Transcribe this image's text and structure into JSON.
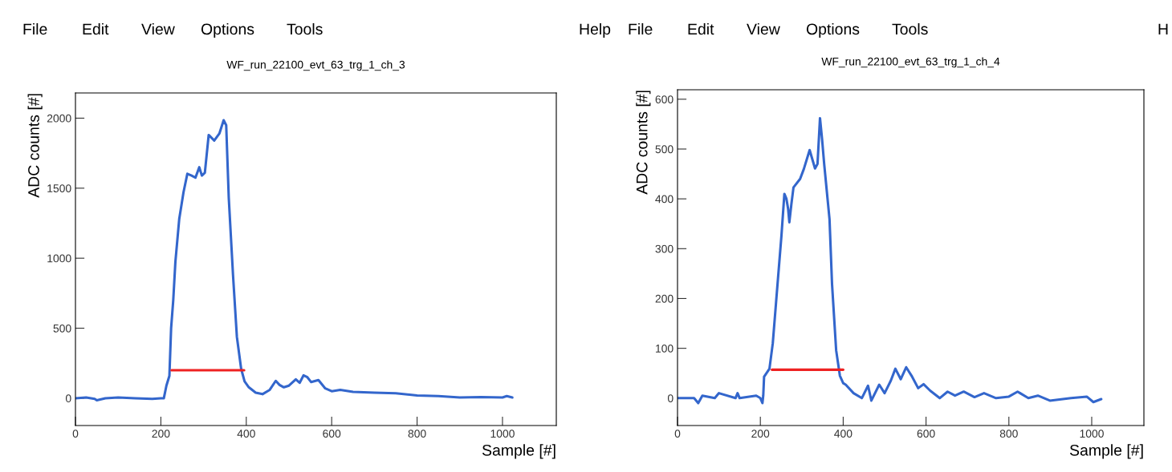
{
  "chart_data": [
    {
      "type": "line",
      "title": "WF_run_22100_evt_63_trg_1_ch_3",
      "xlabel": "Sample [#]",
      "ylabel": "ADC counts [#]",
      "annotations": [
        "File",
        "Edit",
        "View",
        "Options",
        "Tools",
        "Help"
      ],
      "xlim": [
        0,
        1126
      ],
      "xticks": [
        0,
        200,
        400,
        600,
        800,
        1000
      ],
      "ylim": [
        -195,
        2180
      ],
      "yticks": [
        0,
        500,
        1000,
        1500,
        2000
      ],
      "grid": false,
      "legend": false,
      "series": [
        {
          "color": "#3366cc",
          "x": [
            0,
            25,
            45,
            50,
            70,
            100,
            140,
            180,
            200,
            207,
            213,
            220,
            224,
            229,
            234,
            243,
            253,
            262,
            272,
            281,
            290,
            296,
            303,
            312,
            325,
            337,
            347,
            353,
            359,
            369,
            378,
            388,
            396,
            406,
            422,
            438,
            455,
            469,
            478,
            488,
            500,
            516,
            525,
            534,
            543,
            552,
            569,
            585,
            600,
            620,
            650,
            700,
            750,
            800,
            850,
            900,
            950,
            1000,
            1010,
            1023
          ],
          "values": [
            0,
            5,
            -5,
            -15,
            0,
            5,
            0,
            -5,
            0,
            0,
            90,
            160,
            500,
            700,
            973,
            1280,
            1470,
            1603,
            1590,
            1575,
            1650,
            1590,
            1610,
            1880,
            1840,
            1890,
            1985,
            1950,
            1431,
            878,
            439,
            210,
            120,
            78,
            40,
            29,
            60,
            124,
            95,
            78,
            90,
            135,
            110,
            163,
            150,
            115,
            130,
            70,
            50,
            60,
            45,
            40,
            35,
            20,
            15,
            5,
            8,
            5,
            15,
            5
          ]
        },
        {
          "color": "#ee2222",
          "x": [
            225,
            395
          ],
          "values": [
            200,
            200
          ]
        }
      ]
    },
    {
      "type": "line",
      "title": "WF_run_22100_evt_63_trg_1_ch_4",
      "xlabel": "Sample [#]",
      "ylabel": "ADC counts [#]",
      "annotations": [
        "File",
        "Edit",
        "View",
        "Options",
        "Tools",
        "H"
      ],
      "xlim": [
        0,
        1126
      ],
      "xticks": [
        0,
        200,
        400,
        600,
        800,
        1000
      ],
      "ylim": [
        -55,
        619
      ],
      "yticks": [
        0,
        100,
        200,
        300,
        400,
        500,
        600
      ],
      "grid": false,
      "legend": false,
      "series": [
        {
          "color": "#3366cc",
          "x": [
            0,
            40,
            50,
            60,
            90,
            100,
            140,
            145,
            150,
            190,
            200,
            205,
            207,
            209,
            222,
            230,
            238,
            251,
            258,
            263,
            267,
            270,
            275,
            280,
            296,
            305,
            319,
            332,
            338,
            344,
            349,
            354,
            367,
            373,
            383,
            392,
            400,
            406,
            425,
            445,
            460,
            468,
            487,
            500,
            515,
            526,
            539,
            552,
            565,
            581,
            594,
            610,
            633,
            652,
            670,
            691,
            717,
            740,
            769,
            800,
            821,
            847,
            870,
            899,
            950,
            988,
            1004,
            1023
          ],
          "values": [
            0,
            0,
            -10,
            5,
            0,
            10,
            0,
            10,
            0,
            5,
            0,
            -10,
            5,
            43,
            59,
            110,
            193,
            327,
            410,
            400,
            380,
            353,
            390,
            423,
            440,
            460,
            498,
            461,
            470,
            562,
            520,
            471,
            359,
            230,
            96,
            45,
            30,
            27,
            10,
            0,
            25,
            -5,
            27,
            10,
            35,
            59,
            38,
            62,
            45,
            20,
            28,
            15,
            0,
            13,
            5,
            13,
            2,
            10,
            0,
            3,
            13,
            0,
            5,
            -5,
            0,
            3,
            -8,
            -2
          ]
        },
        {
          "color": "#ee2222",
          "x": [
            228,
            400
          ],
          "values": [
            57,
            57
          ]
        }
      ]
    }
  ]
}
